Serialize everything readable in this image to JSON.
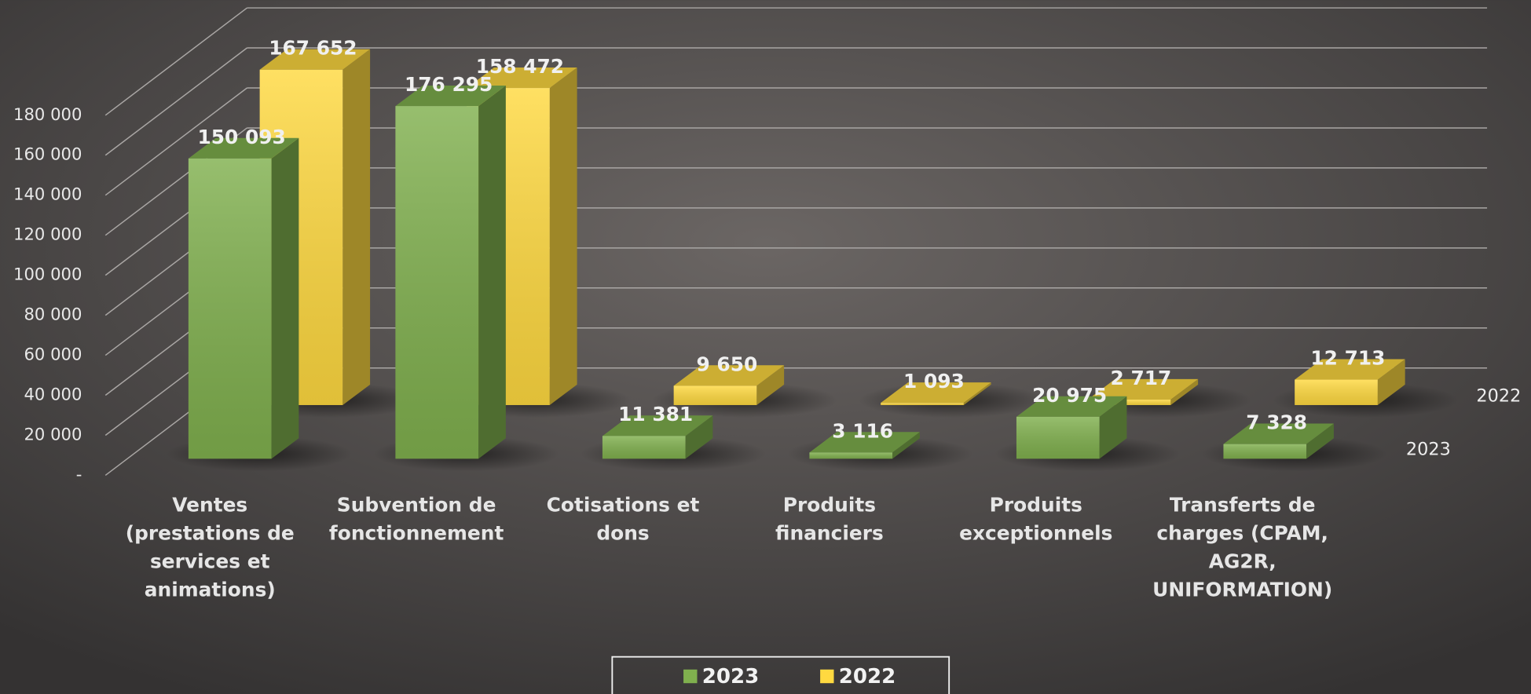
{
  "chart_data": {
    "type": "bar3d",
    "categories": [
      "Ventes\n(prestations de\nservices et\nanimations)",
      "Subvention de\nfonctionnement",
      "Cotisations et\ndons",
      "Produits\nfinanciers",
      "Produits\nexceptionnels",
      "Transferts de\ncharges (CPAM,\nAG2R,\nUNIFORMATION)"
    ],
    "series": [
      {
        "name": "2023",
        "color": "#80b04e",
        "values": [
          150093,
          176295,
          11381,
          3116,
          20975,
          7328
        ],
        "value_labels": [
          "150 093",
          "176 295",
          "11 381",
          "3 116",
          "20 975",
          "7 328"
        ]
      },
      {
        "name": "2022",
        "color": "#ffd940",
        "values": [
          167652,
          158472,
          9650,
          1093,
          2717,
          12713
        ],
        "value_labels": [
          "167 652",
          "158 472",
          "9 650",
          "1 093",
          "2 717",
          "12 713"
        ]
      }
    ],
    "ylim": [
      0,
      180000
    ],
    "yticks": [
      {
        "value": 0,
        "label": "-"
      },
      {
        "value": 20000,
        "label": "20 000"
      },
      {
        "value": 40000,
        "label": "40 000"
      },
      {
        "value": 60000,
        "label": "60 000"
      },
      {
        "value": 80000,
        "label": "80 000"
      },
      {
        "value": 100000,
        "label": "100 000"
      },
      {
        "value": 120000,
        "label": "120 000"
      },
      {
        "value": 140000,
        "label": "140 000"
      },
      {
        "value": 160000,
        "label": "160 000"
      },
      {
        "value": 180000,
        "label": "180 000"
      }
    ],
    "grid": true,
    "legend": "bottom"
  }
}
